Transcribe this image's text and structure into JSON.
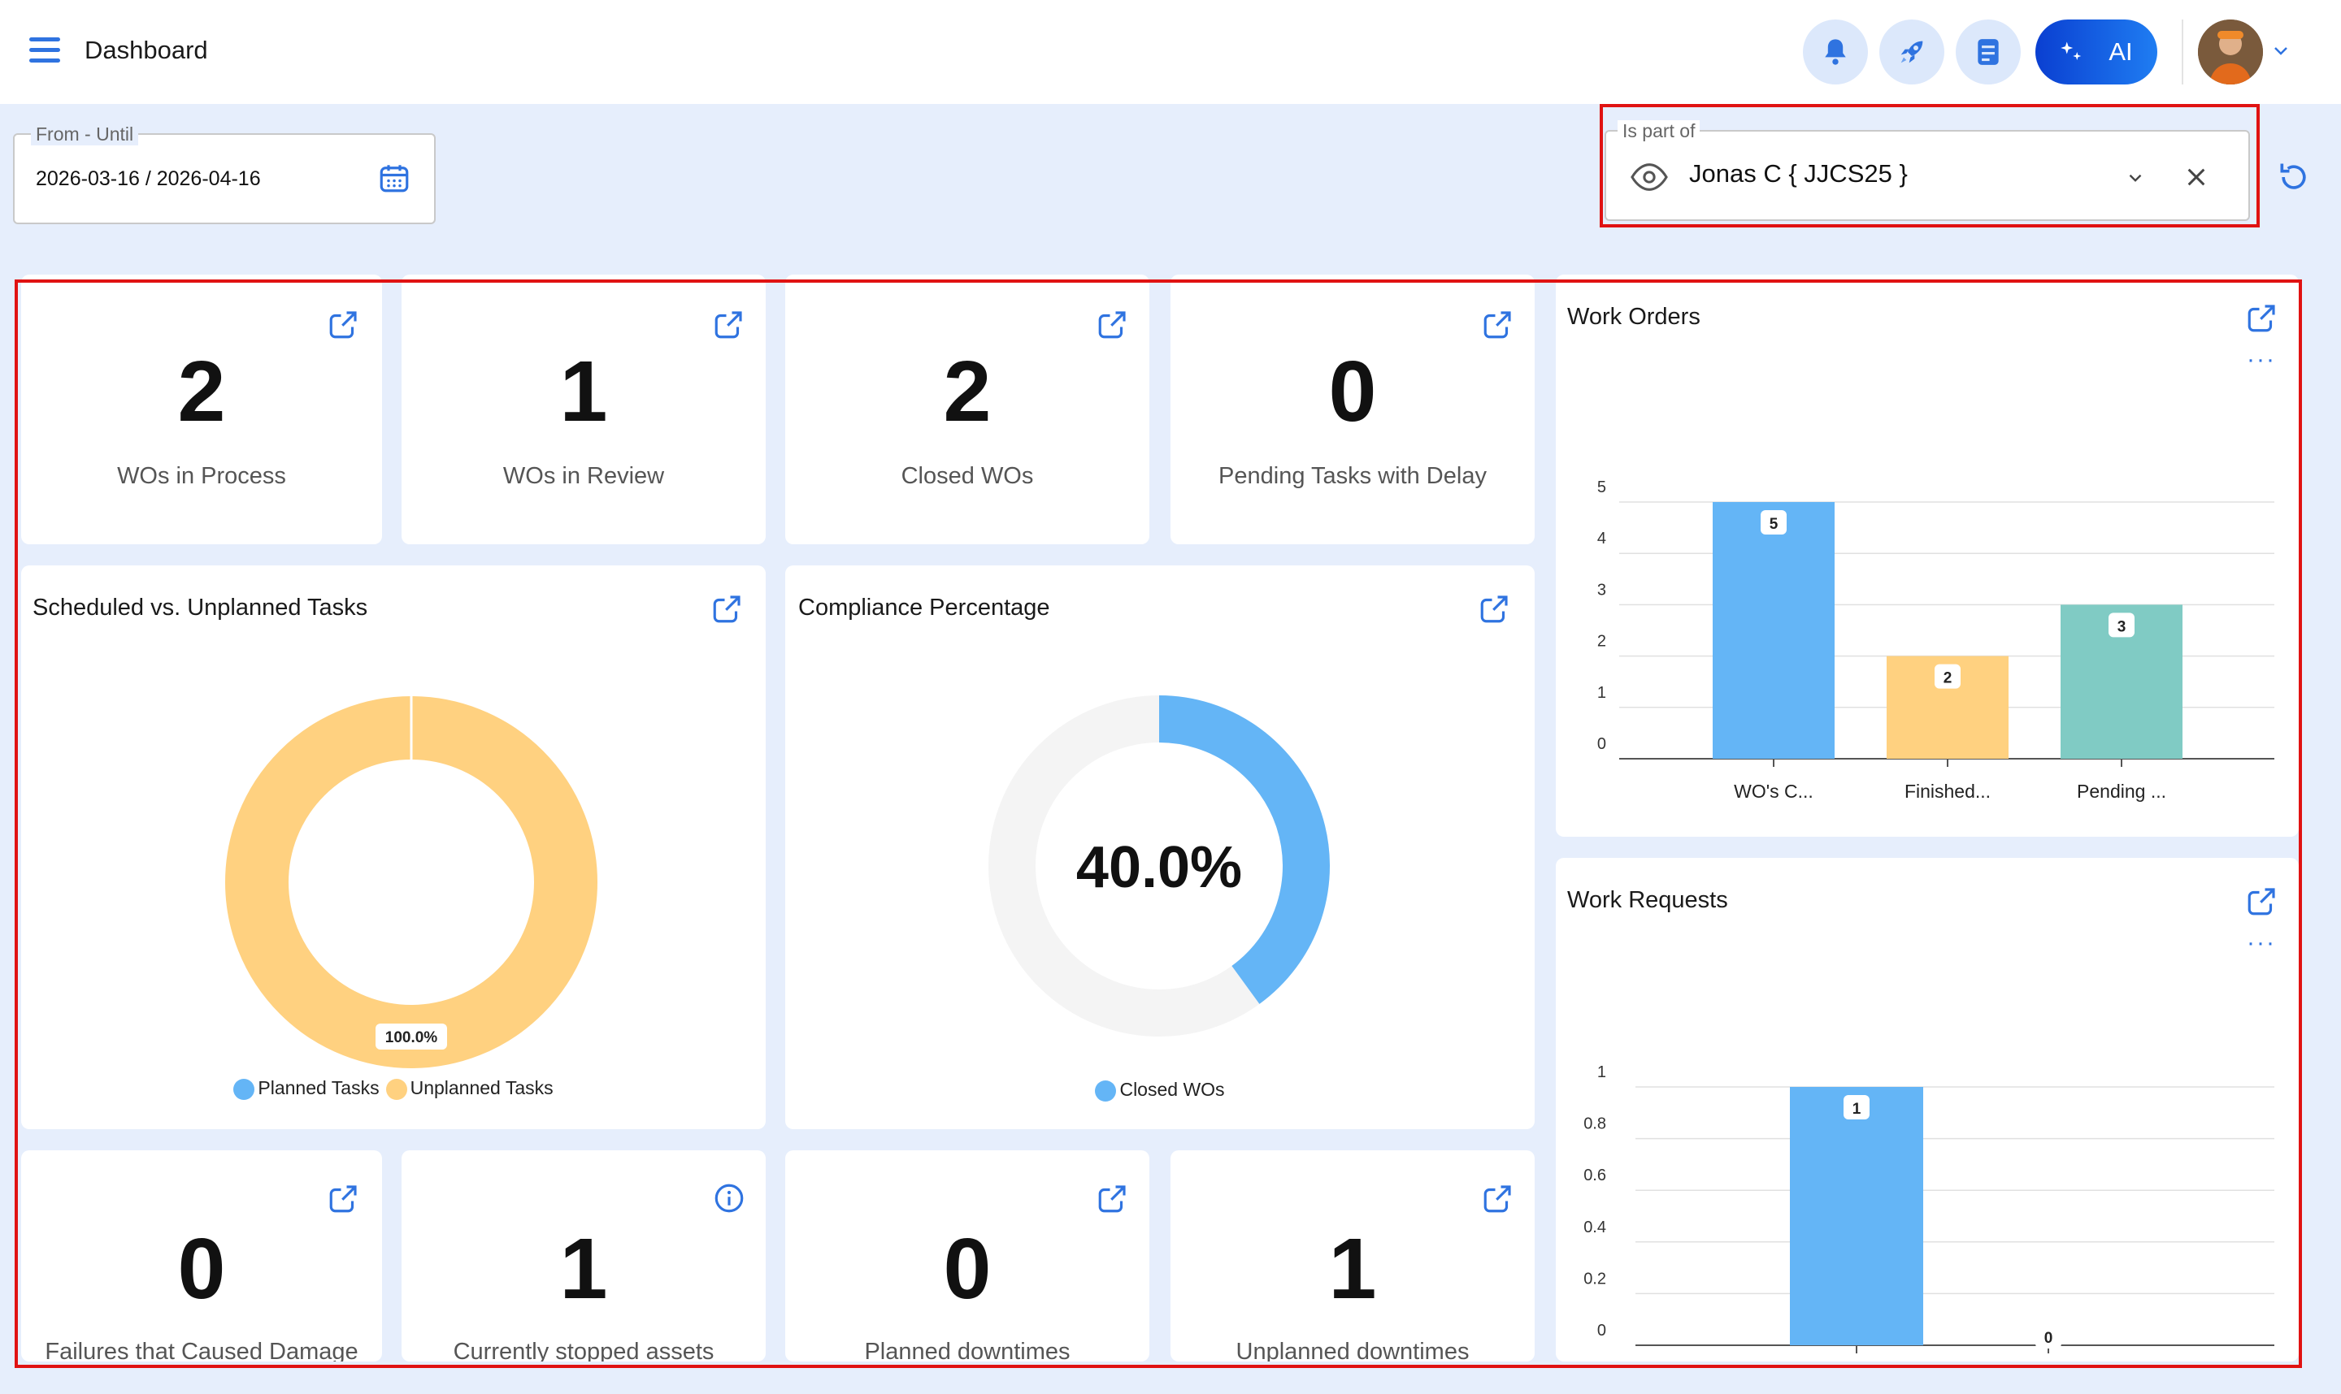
{
  "header": {
    "title": "Dashboard",
    "ai_label": "AI"
  },
  "filters": {
    "date_label": "From - Until",
    "date_value": "2026-03-16 / 2026-04-16",
    "part_label": "Is part of",
    "part_value": "Jonas C { JJCS25 }"
  },
  "kpis_top": [
    {
      "value": "2",
      "label": "WOs in Process"
    },
    {
      "value": "1",
      "label": "WOs in Review"
    },
    {
      "value": "2",
      "label": "Closed WOs"
    },
    {
      "value": "0",
      "label": "Pending Tasks with Delay"
    }
  ],
  "kpis_bottom": [
    {
      "value": "0",
      "label": "Failures that Caused Damage"
    },
    {
      "value": "1",
      "label": "Currently stopped assets"
    },
    {
      "value": "0",
      "label": "Planned downtimes"
    },
    {
      "value": "1",
      "label": "Unplanned downtimes"
    }
  ],
  "colors": {
    "accent": "#2f73e0",
    "blue": "#64b5f6",
    "orange": "#ffd180",
    "teal": "#80cbc4",
    "highlight": "#e01212"
  },
  "chart_data": [
    {
      "type": "pie",
      "title": "Scheduled vs. Unplanned Tasks",
      "series": [
        {
          "name": "Planned Tasks",
          "value": 0,
          "color": "#64b5f6"
        },
        {
          "name": "Unplanned Tasks",
          "value": 100,
          "color": "#ffd180"
        }
      ],
      "data_label": "100.0%"
    },
    {
      "type": "pie",
      "title": "Compliance Percentage",
      "series": [
        {
          "name": "Closed WOs",
          "value": 40,
          "color": "#64b5f6"
        }
      ],
      "center_label": "40.0%"
    },
    {
      "type": "bar",
      "title": "Work Orders",
      "categories": [
        "WO's C...",
        "Finished...",
        "Pending ..."
      ],
      "values": [
        5,
        2,
        3
      ],
      "colors": [
        "#64b5f6",
        "#ffd180",
        "#80cbc4"
      ],
      "ylim": [
        0,
        5
      ],
      "yticks": [
        "0",
        "1",
        "2",
        "3",
        "4",
        "5"
      ]
    },
    {
      "type": "bar",
      "title": "Work Requests",
      "categories": [
        "",
        ""
      ],
      "values": [
        1,
        0
      ],
      "colors": [
        "#64b5f6",
        "#64b5f6"
      ],
      "ylim": [
        0,
        1
      ],
      "yticks": [
        "0",
        "0.2",
        "0.4",
        "0.6",
        "0.8",
        "1"
      ]
    }
  ]
}
